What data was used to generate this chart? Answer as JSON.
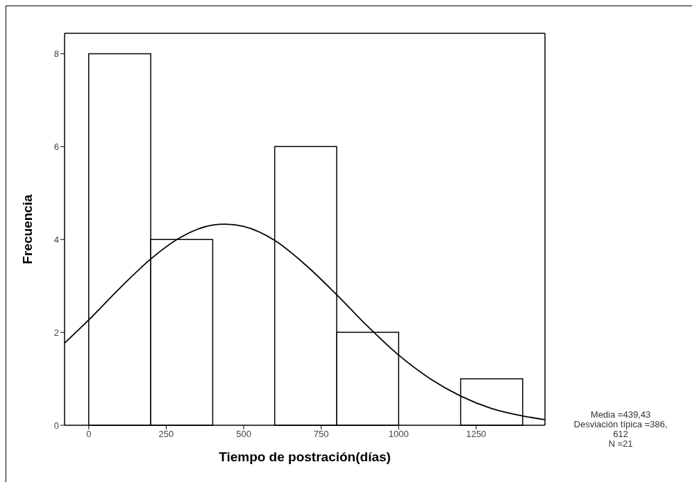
{
  "chart_data": {
    "type": "histogram",
    "xlabel": "Tiempo de postración(días)",
    "ylabel": "Frecuencia",
    "xlim": [
      -78,
      1472
    ],
    "xticks": [
      0,
      250,
      500,
      750,
      1000,
      1250
    ],
    "ylim": [
      0,
      8.44
    ],
    "yticks": [
      0,
      2,
      4,
      6,
      8
    ],
    "series": [
      {
        "type": "histogram",
        "color": "#ffffff",
        "bins": [
          0,
          200,
          400,
          600,
          800,
          1000,
          1200,
          1400
        ],
        "values": [
          8,
          4,
          0,
          6,
          2,
          0,
          1
        ]
      },
      {
        "type": "line",
        "color": "#000000",
        "x": [
          -78,
          0,
          100,
          200,
          300,
          400,
          439,
          500,
          600,
          700,
          800,
          900,
          1000,
          1100,
          1200,
          1300,
          1400,
          1472
        ],
        "values": [
          1.77,
          2.27,
          2.95,
          3.58,
          4.06,
          4.31,
          4.33,
          4.28,
          3.98,
          3.45,
          2.81,
          2.13,
          1.51,
          1.01,
          0.63,
          0.36,
          0.2,
          0.12
        ]
      }
    ],
    "annotations": [
      "Media =439,43",
      "Desviación típica =386,",
      "612",
      "N =21"
    ]
  }
}
